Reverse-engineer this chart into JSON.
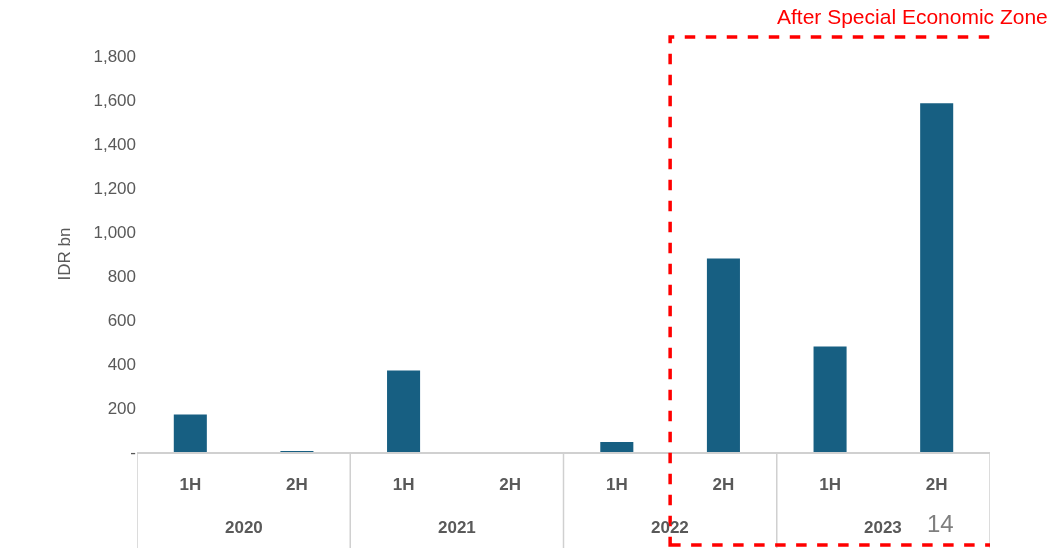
{
  "chart_data": {
    "type": "bar",
    "ylabel": "IDR bn",
    "categories": [
      "1H",
      "2H",
      "1H",
      "2H",
      "1H",
      "2H",
      "1H",
      "2H"
    ],
    "values": [
      170,
      3,
      370,
      0,
      45,
      880,
      480,
      1585
    ],
    "color": "#175f82",
    "ylim": [
      0,
      1800
    ],
    "yticks": [
      {
        "value": 0,
        "label": "-"
      },
      200,
      400,
      600,
      800,
      {
        "value": 1000,
        "label": "1,000"
      },
      {
        "value": 1200,
        "label": "1,200"
      },
      {
        "value": 1400,
        "label": "1,400"
      },
      {
        "value": 1600,
        "label": "1,600"
      },
      {
        "value": 1800,
        "label": "1,800"
      }
    ],
    "annotations": [
      "2020",
      "2021",
      "2022",
      "2023",
      "After Special Economic Zone",
      "14"
    ]
  }
}
